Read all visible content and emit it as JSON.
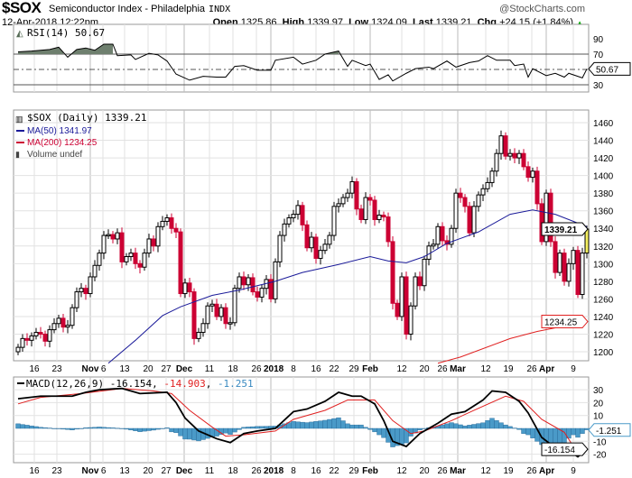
{
  "header": {
    "symbol": "$SOX",
    "name": "Semiconductor Index - Philadelphia",
    "exchange": "INDX",
    "brand": "@StockCharts.com",
    "datetime": "12-Apr-2018 12:22pm",
    "open_label": "Open",
    "open": "1325.86",
    "high_label": "High",
    "high": "1339.97",
    "low_label": "Low",
    "low": "1324.09",
    "last_label": "Last",
    "last": "1339.21",
    "chg_label": "Chg",
    "chg": "+24.15 (+1.84%)",
    "chg_arrow": "▲"
  },
  "colors": {
    "up": "#000000",
    "down": "#cc0033",
    "ma50": "#1a1a99",
    "ma200": "#e02020",
    "hist": "#4a9ac8",
    "rsi_fill": "#6e7f6e"
  },
  "chart_data": [
    {
      "type": "line",
      "panel": "rsi",
      "legend": "RSI(14) 50.67",
      "last_tag": "50.67",
      "ylim": [
        0,
        100
      ],
      "ticks": [
        "90",
        "70",
        "30"
      ],
      "tick_values": [
        90,
        70,
        30
      ],
      "levels": [
        70,
        50,
        30
      ],
      "points": [
        [
          0,
          73
        ],
        [
          3,
          74
        ],
        [
          7,
          76
        ],
        [
          9,
          79
        ],
        [
          11,
          66
        ],
        [
          13,
          76
        ],
        [
          15,
          78
        ],
        [
          17,
          75
        ],
        [
          19,
          83
        ],
        [
          21,
          83
        ],
        [
          22,
          68
        ],
        [
          25,
          69
        ],
        [
          26,
          63
        ],
        [
          29,
          71
        ],
        [
          31,
          69
        ],
        [
          33,
          61
        ],
        [
          35,
          44
        ],
        [
          38,
          36
        ],
        [
          41,
          41
        ],
        [
          44,
          40
        ],
        [
          46,
          40
        ],
        [
          48,
          54
        ],
        [
          50,
          55
        ],
        [
          53,
          49
        ],
        [
          56,
          49
        ],
        [
          57,
          62
        ],
        [
          61,
          66
        ],
        [
          63,
          57
        ],
        [
          66,
          62
        ],
        [
          68,
          70
        ],
        [
          71,
          74
        ],
        [
          73,
          54
        ],
        [
          74,
          62
        ],
        [
          77,
          55
        ],
        [
          78,
          57
        ],
        [
          80,
          37
        ],
        [
          82,
          43
        ],
        [
          83,
          35
        ],
        [
          86,
          45
        ],
        [
          88,
          51
        ],
        [
          91,
          53
        ],
        [
          92,
          51
        ],
        [
          95,
          61
        ],
        [
          97,
          53
        ],
        [
          100,
          59
        ],
        [
          102,
          61
        ],
        [
          104,
          68
        ],
        [
          106,
          62
        ],
        [
          109,
          62
        ],
        [
          110,
          55
        ],
        [
          112,
          57
        ],
        [
          113,
          40
        ],
        [
          114,
          51
        ],
        [
          117,
          42
        ],
        [
          119,
          45
        ],
        [
          121,
          40
        ],
        [
          122,
          45
        ],
        [
          125,
          39
        ],
        [
          126,
          50.67
        ]
      ]
    },
    {
      "type": "candlestick",
      "panel": "price",
      "legend": "$SOX (Daily) 1339.21",
      "ma50_legend": "MA(50) 1341.97",
      "ma200_legend": "MA(200) 1234.25",
      "volume_legend": "Volume undef",
      "ylim": [
        1190,
        1470
      ],
      "yticks": [
        1200,
        1220,
        1240,
        1260,
        1280,
        1300,
        1320,
        1340,
        1360,
        1380,
        1400,
        1420,
        1440,
        1460
      ],
      "ytick_labels": [
        "1200",
        "1220",
        "1240",
        "1260",
        "1280",
        "1300",
        "1320",
        "1340",
        "1360",
        "1380",
        "1400",
        "1420",
        "1440",
        "1460"
      ],
      "last_tag": "1339.21",
      "ma200_tag": "1234.25",
      "closes": [
        1205,
        1215,
        1213,
        1218,
        1222,
        1220,
        1212,
        1225,
        1232,
        1238,
        1228,
        1230,
        1250,
        1268,
        1272,
        1266,
        1285,
        1298,
        1312,
        1332,
        1333,
        1328,
        1335,
        1302,
        1308,
        1312,
        1300,
        1296,
        1312,
        1328,
        1320,
        1342,
        1348,
        1352,
        1340,
        1336,
        1266,
        1278,
        1268,
        1215,
        1222,
        1232,
        1252,
        1254,
        1240,
        1250,
        1232,
        1233,
        1272,
        1285,
        1276,
        1284,
        1268,
        1262,
        1272,
        1282,
        1260,
        1302,
        1332,
        1345,
        1352,
        1356,
        1366,
        1344,
        1318,
        1330,
        1306,
        1315,
        1322,
        1332,
        1365,
        1368,
        1375,
        1380,
        1393,
        1362,
        1350,
        1375,
        1372,
        1350,
        1355,
        1353,
        1325,
        1255,
        1240,
        1285,
        1220,
        1252,
        1285,
        1275,
        1305,
        1320,
        1322,
        1342,
        1326,
        1322,
        1340,
        1380,
        1375,
        1365,
        1335,
        1365,
        1378,
        1385,
        1392,
        1405,
        1425,
        1445,
        1422,
        1425,
        1420,
        1425,
        1410,
        1398,
        1405,
        1368,
        1325,
        1380,
        1325,
        1290,
        1312,
        1280,
        1300,
        1315,
        1265,
        1312,
        1339.21
      ],
      "ma50": [
        [
          20,
          1187
        ],
        [
          26,
          1213
        ],
        [
          32,
          1241
        ],
        [
          36,
          1251
        ],
        [
          43,
          1264
        ],
        [
          49,
          1270
        ],
        [
          57,
          1280
        ],
        [
          63,
          1290
        ],
        [
          71,
          1299
        ],
        [
          78,
          1308
        ],
        [
          82,
          1303
        ],
        [
          86,
          1301
        ],
        [
          90,
          1308
        ],
        [
          95,
          1323
        ],
        [
          102,
          1336
        ],
        [
          109,
          1356
        ],
        [
          114,
          1361
        ],
        [
          119,
          1356
        ],
        [
          126,
          1341.97
        ]
      ],
      "ma200": [
        [
          93,
          1187
        ],
        [
          98,
          1194
        ],
        [
          109,
          1215
        ],
        [
          115,
          1223
        ],
        [
          126,
          1234.25
        ]
      ]
    },
    {
      "type": "line",
      "panel": "macd",
      "legend_name": "MACD(12,26,9)",
      "legend_macd": "-16.154",
      "legend_signal": "-14.903",
      "legend_hist": "-1.251",
      "hist_tag": "-1.251",
      "macd_tag": "-16.154",
      "ylim": [
        -25,
        35
      ],
      "ticks": [
        "30",
        "20",
        "10",
        "-10",
        "-20"
      ],
      "tick_values": [
        30,
        20,
        10,
        -10,
        -20
      ],
      "macd": [
        [
          0,
          23
        ],
        [
          5,
          25
        ],
        [
          12,
          25
        ],
        [
          15,
          28
        ],
        [
          18,
          30
        ],
        [
          23,
          31
        ],
        [
          27,
          27
        ],
        [
          33,
          28
        ],
        [
          35,
          20
        ],
        [
          37,
          8
        ],
        [
          40,
          -2
        ],
        [
          44,
          -8
        ],
        [
          47,
          -11
        ],
        [
          50,
          -4
        ],
        [
          53,
          -2
        ],
        [
          57,
          0
        ],
        [
          61,
          13
        ],
        [
          64,
          15
        ],
        [
          68,
          21
        ],
        [
          71,
          28
        ],
        [
          74,
          25
        ],
        [
          76,
          25
        ],
        [
          79,
          19
        ],
        [
          81,
          6
        ],
        [
          83,
          -10
        ],
        [
          86,
          -14
        ],
        [
          89,
          -4
        ],
        [
          93,
          4
        ],
        [
          96,
          11
        ],
        [
          99,
          13
        ],
        [
          103,
          22
        ],
        [
          105,
          29
        ],
        [
          108,
          28
        ],
        [
          111,
          21
        ],
        [
          113,
          12
        ],
        [
          116,
          -7
        ],
        [
          119,
          -15
        ],
        [
          122,
          -17
        ],
        [
          124,
          -22
        ],
        [
          126,
          -16.154
        ]
      ],
      "signal": [
        [
          0,
          19
        ],
        [
          5,
          24
        ],
        [
          14,
          27
        ],
        [
          23,
          31
        ],
        [
          30,
          29
        ],
        [
          34,
          27
        ],
        [
          38,
          14
        ],
        [
          43,
          1
        ],
        [
          46,
          -6
        ],
        [
          50,
          -5
        ],
        [
          57,
          -2
        ],
        [
          61,
          7
        ],
        [
          68,
          14
        ],
        [
          73,
          22
        ],
        [
          79,
          22
        ],
        [
          83,
          6
        ],
        [
          87,
          -4
        ],
        [
          90,
          -2
        ],
        [
          96,
          6
        ],
        [
          101,
          14
        ],
        [
          108,
          25
        ],
        [
          112,
          21
        ],
        [
          116,
          7
        ],
        [
          121,
          -3
        ],
        [
          123,
          -14
        ],
        [
          126,
          -14.903
        ]
      ]
    }
  ],
  "x_axis": {
    "labels": [
      "16",
      "23",
      "Nov",
      "6",
      "13",
      "20",
      "27",
      "Dec",
      "11",
      "18",
      "26",
      "2018",
      "8",
      "16",
      "22",
      "29",
      "Feb",
      "12",
      "20",
      "26",
      "Mar",
      "12",
      "19",
      "26",
      "Apr",
      "9"
    ],
    "positions": [
      3.6,
      8.6,
      16,
      18.8,
      23.6,
      28.8,
      32.8,
      36.8,
      42.4,
      47.6,
      52.8,
      56,
      61,
      66,
      70,
      74.4,
      78,
      85,
      90,
      94,
      97.4,
      103.6,
      108.6,
      113.8,
      117,
      123
    ],
    "major": [
      false,
      false,
      true,
      false,
      false,
      false,
      false,
      true,
      false,
      false,
      false,
      true,
      false,
      false,
      false,
      false,
      true,
      false,
      false,
      false,
      true,
      false,
      false,
      false,
      true,
      false
    ]
  }
}
